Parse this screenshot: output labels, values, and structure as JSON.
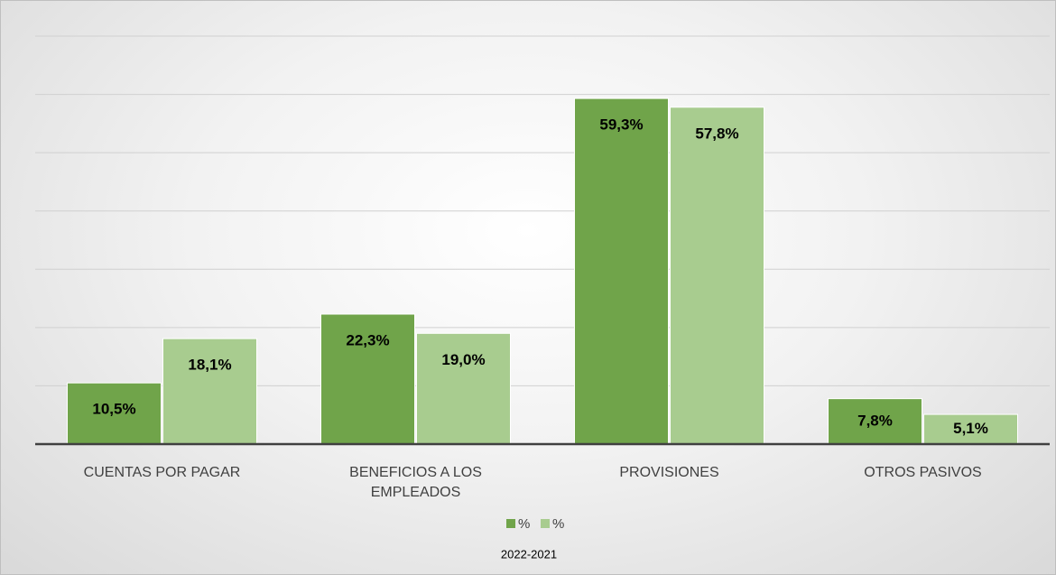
{
  "chart_data": {
    "type": "bar",
    "title": "2022-2021",
    "categories": [
      "CUENTAS POR PAGAR",
      "BENEFICIOS A LOS EMPLEADOS",
      "PROVISIONES",
      "OTROS PASIVOS"
    ],
    "series": [
      {
        "name": "%",
        "color": "#70a44a",
        "values": [
          10.5,
          22.3,
          59.3,
          7.8
        ],
        "value_labels": [
          "10,5%",
          "22,3%",
          "59,3%",
          "7,8%"
        ]
      },
      {
        "name": "%",
        "color": "#a8cc8f",
        "values": [
          18.1,
          19.0,
          57.8,
          5.1
        ],
        "value_labels": [
          "18,1%",
          "19,0%",
          "57,8%",
          "5,1%"
        ]
      }
    ],
    "ylim": [
      0,
      70
    ],
    "yticks": [
      0,
      10,
      20,
      30,
      40,
      50,
      60,
      70
    ],
    "grid": true,
    "legend": "bottom"
  }
}
